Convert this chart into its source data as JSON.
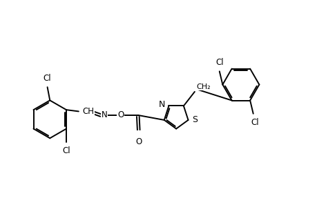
{
  "background_color": "#ffffff",
  "line_color": "#000000",
  "text_color": "#000000",
  "line_width": 1.4,
  "font_size": 8.5,
  "figsize": [
    4.6,
    3.0
  ],
  "dpi": 100,
  "xlim": [
    0,
    10
  ],
  "ylim": [
    0,
    6.5
  ]
}
